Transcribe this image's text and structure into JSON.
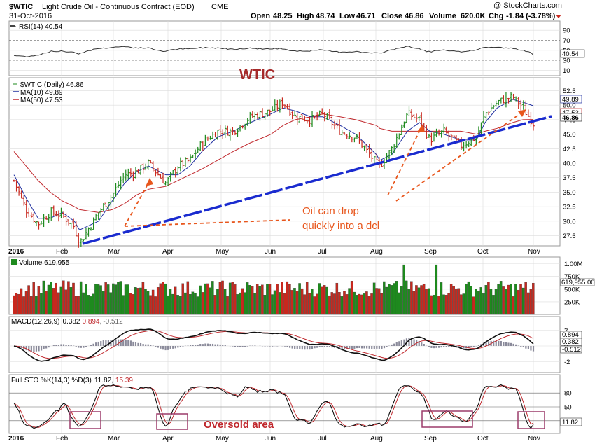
{
  "header": {
    "symbol": "$WTIC",
    "description": "Light Crude Oil - Continuous Contract (EOD)",
    "exchange": "CME",
    "date": "31-Oct-2016",
    "watermark": "@ StockCharts.com",
    "open_label": "Open",
    "open": "48.25",
    "high_label": "High",
    "high": "48.74",
    "low_label": "Low",
    "low": "46.71",
    "close_label": "Close",
    "close": "46.86",
    "volume_label": "Volume",
    "volume": "620.0K",
    "chg_label": "Chg",
    "chg": "-1.84 (-3.78%)"
  },
  "colors": {
    "up": "#1e8a1e",
    "down": "#c8281e",
    "ma10": "#2030a0",
    "ma50": "#c0282d",
    "trendline": "#1a2bcf",
    "annotation": "#e8561c",
    "oversold_box": "#9c3b6a",
    "panel_bg": "#ffffff",
    "grid": "#dcdcdc"
  },
  "months": [
    "2016",
    "Feb",
    "Mar",
    "Apr",
    "May",
    "Jun",
    "Jul",
    "Aug",
    "Sep",
    "Oct",
    "Nov"
  ],
  "rsi": {
    "label": "RSI(14) 40.54",
    "current_label": "40.54",
    "ticks": [
      "90",
      "70",
      "50",
      "30",
      "10"
    ],
    "current": 40.54
  },
  "price": {
    "title": "WTIC",
    "legend_main": "$WTIC (Daily) 46.86",
    "legend_ma10": "MA(10) 49.89",
    "legend_ma50": "MA(50) 47.53",
    "ticks": [
      "52.5",
      "50.0",
      "47.5",
      "45.0",
      "42.5",
      "40.0",
      "37.5",
      "35.0",
      "32.5",
      "30.0",
      "27.5"
    ],
    "tag_ma10": "49.89",
    "tag_ma50": "47.53",
    "tag_close": "46.86",
    "annotation_line1": "Oil can drop",
    "annotation_line2": "quickly into a dcl"
  },
  "volume": {
    "label": "Volume 619,955",
    "ticks": [
      "1.00M",
      "750K",
      "500K",
      "250K"
    ],
    "current_label": "619,955.00"
  },
  "macd": {
    "label_prefix": "MACD(12,26,9)",
    "v1": "0.382",
    "v2": "0.894",
    "v3": "-0.512",
    "ticks": [
      "2",
      "0",
      "-2"
    ]
  },
  "sto": {
    "label_prefix": "Full STO %K(14,3) %D(3)",
    "k": "11.82",
    "d": "15.39",
    "ticks": [
      "80",
      "50",
      "20"
    ],
    "oversold_label": "Oversold area"
  },
  "chart_data": {
    "type": "line",
    "x": [
      "2016-01-04",
      "2016-01-11",
      "2016-01-18",
      "2016-01-25",
      "2016-02-01",
      "2016-02-08",
      "2016-02-11",
      "2016-02-22",
      "2016-03-01",
      "2016-03-08",
      "2016-03-15",
      "2016-03-22",
      "2016-04-01",
      "2016-04-08",
      "2016-04-15",
      "2016-04-22",
      "2016-05-01",
      "2016-05-10",
      "2016-05-20",
      "2016-06-01",
      "2016-06-08",
      "2016-06-15",
      "2016-06-24",
      "2016-07-01",
      "2016-07-11",
      "2016-07-20",
      "2016-08-01",
      "2016-08-03",
      "2016-08-10",
      "2016-08-19",
      "2016-08-26",
      "2016-09-01",
      "2016-09-09",
      "2016-09-19",
      "2016-09-28",
      "2016-10-03",
      "2016-10-10",
      "2016-10-19",
      "2016-10-25",
      "2016-10-31"
    ],
    "series": [
      {
        "name": "$WTIC (Daily)",
        "values": [
          37.0,
          32.0,
          29.5,
          31.5,
          31.0,
          29.0,
          26.2,
          31.5,
          34.5,
          38.0,
          38.5,
          40.0,
          36.5,
          39.5,
          40.5,
          43.5,
          45.5,
          45.5,
          48.0,
          49.0,
          50.5,
          48.0,
          47.5,
          48.5,
          45.5,
          44.5,
          40.0,
          39.5,
          42.5,
          48.5,
          47.5,
          44.0,
          45.5,
          43.0,
          44.5,
          48.5,
          50.5,
          51.5,
          49.5,
          46.86
        ]
      },
      {
        "name": "MA(10)",
        "values": [
          38.0,
          34.0,
          30.5,
          30.5,
          31.5,
          30.0,
          28.5,
          30.0,
          33.5,
          36.5,
          38.5,
          39.5,
          38.0,
          38.0,
          39.5,
          42.0,
          44.5,
          45.5,
          47.0,
          48.5,
          49.5,
          49.0,
          48.0,
          48.0,
          46.5,
          45.0,
          41.5,
          40.5,
          41.5,
          45.5,
          47.0,
          45.5,
          45.0,
          44.0,
          44.0,
          47.0,
          49.5,
          51.0,
          50.5,
          49.89
        ]
      },
      {
        "name": "MA(50)",
        "values": [
          42.0,
          39.5,
          37.0,
          35.0,
          33.5,
          32.5,
          32.0,
          31.5,
          32.0,
          33.0,
          34.5,
          35.5,
          36.0,
          37.0,
          38.0,
          39.0,
          40.5,
          42.0,
          43.5,
          45.0,
          46.5,
          47.5,
          48.0,
          48.5,
          48.0,
          47.5,
          46.5,
          46.0,
          45.5,
          45.5,
          45.5,
          45.5,
          45.5,
          45.5,
          45.0,
          45.5,
          46.0,
          47.0,
          47.5,
          47.53
        ]
      }
    ],
    "ylabel": "",
    "ylim": [
      26,
      54
    ],
    "grid": true
  }
}
